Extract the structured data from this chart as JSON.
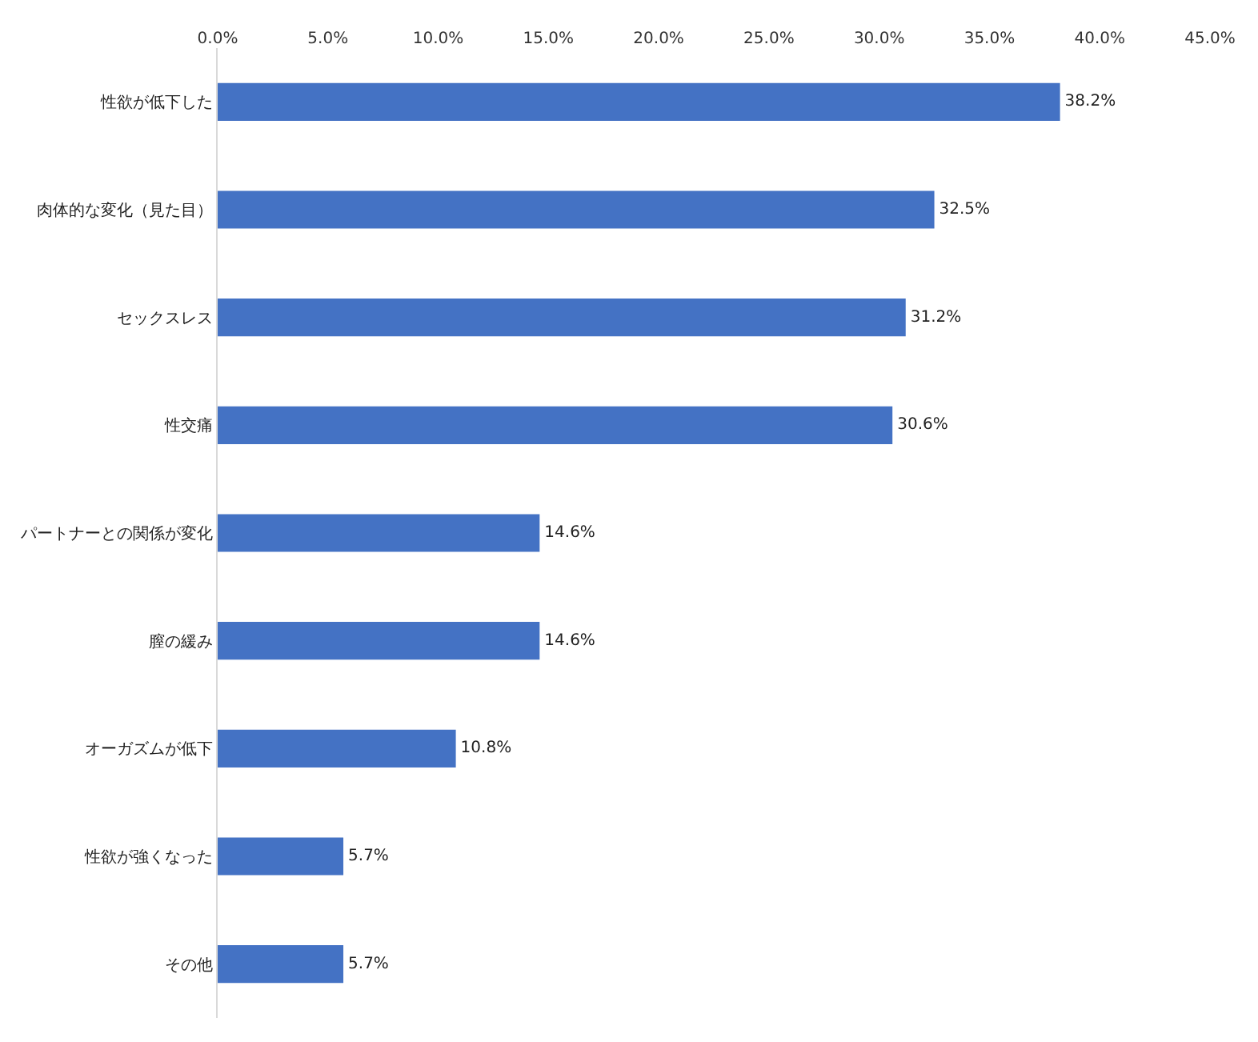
{
  "chart_data": {
    "type": "bar",
    "orientation": "horizontal",
    "categories": [
      "性欲が低下した",
      "肉体的な変化（見た目）",
      "セックスレス",
      "性交痛",
      "パートナーとの関係が変化",
      "膣の緩み",
      "オーガズムが低下",
      "性欲が強くなった",
      "その他"
    ],
    "values": [
      38.2,
      32.5,
      31.2,
      30.6,
      14.6,
      14.6,
      10.8,
      5.7,
      5.7
    ],
    "value_labels": [
      "38.2%",
      "32.5%",
      "31.2%",
      "30.6%",
      "14.6%",
      "14.6%",
      "10.8%",
      "5.7%",
      "5.7%"
    ],
    "color": "#4472c4",
    "xlim": [
      0,
      45
    ],
    "xticks": [
      {
        "value": 0,
        "label": "0.0%"
      },
      {
        "value": 5,
        "label": "5.0%"
      },
      {
        "value": 10,
        "label": "10.0%"
      },
      {
        "value": 15,
        "label": "15.0%"
      },
      {
        "value": 20,
        "label": "20.0%"
      },
      {
        "value": 25,
        "label": "25.0%"
      },
      {
        "value": 30,
        "label": "30.0%"
      },
      {
        "value": 35,
        "label": "35.0%"
      },
      {
        "value": 40,
        "label": "40.0%"
      },
      {
        "value": 45,
        "label": "45.0%"
      }
    ]
  }
}
